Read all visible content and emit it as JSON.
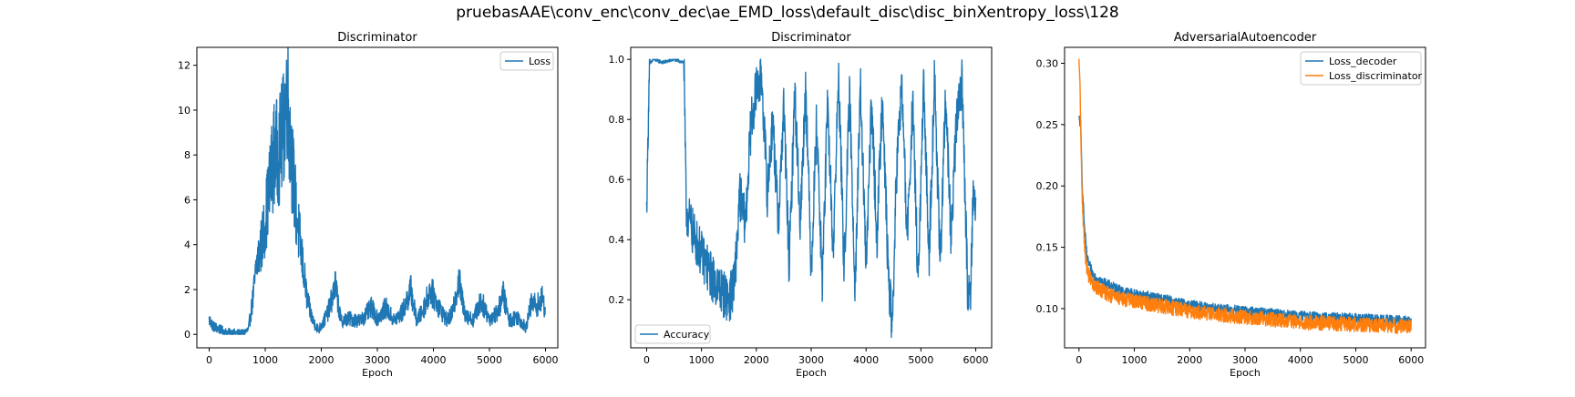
{
  "figure": {
    "suptitle": "pruebasAAE\\conv_enc\\conv_dec\\ae_EMD_loss\\default_disc\\disc_binXentropy_loss\\128"
  },
  "chart_data": [
    {
      "type": "line",
      "title": "Discriminator",
      "xlabel": "Epoch",
      "ylabel": "",
      "xlim": [
        -220,
        6220
      ],
      "ylim": [
        -0.6,
        12.8
      ],
      "xticks": [
        0,
        1000,
        2000,
        3000,
        4000,
        5000,
        6000
      ],
      "yticks": [
        0,
        2,
        4,
        6,
        8,
        10,
        12
      ],
      "legend": "top-right",
      "grid": false,
      "series": [
        {
          "name": "Loss",
          "color": "#1f77b4",
          "noise": 0.15,
          "keypoints": [
            [
              0,
              0.65
            ],
            [
              80,
              0.35
            ],
            [
              300,
              0.1
            ],
            [
              600,
              0.05
            ],
            [
              700,
              0.2
            ],
            [
              780,
              1.6
            ],
            [
              850,
              3.2
            ],
            [
              950,
              4.2
            ],
            [
              1050,
              6.0
            ],
            [
              1150,
              8.0
            ],
            [
              1250,
              8.2
            ],
            [
              1320,
              9.0
            ],
            [
              1390,
              11.0
            ],
            [
              1450,
              8.5
            ],
            [
              1550,
              5.5
            ],
            [
              1650,
              3.5
            ],
            [
              1750,
              1.5
            ],
            [
              1850,
              0.6
            ],
            [
              1950,
              0.2
            ],
            [
              2050,
              0.6
            ],
            [
              2150,
              1.2
            ],
            [
              2250,
              2.2
            ],
            [
              2350,
              0.6
            ],
            [
              2500,
              0.7
            ],
            [
              2700,
              0.6
            ],
            [
              2900,
              1.2
            ],
            [
              3000,
              0.7
            ],
            [
              3150,
              1.2
            ],
            [
              3300,
              0.6
            ],
            [
              3450,
              1.0
            ],
            [
              3600,
              2.0
            ],
            [
              3700,
              0.6
            ],
            [
              3800,
              1.0
            ],
            [
              3950,
              2.0
            ],
            [
              4100,
              1.2
            ],
            [
              4250,
              0.6
            ],
            [
              4350,
              1.0
            ],
            [
              4450,
              2.5
            ],
            [
              4550,
              1.0
            ],
            [
              4700,
              0.6
            ],
            [
              4850,
              1.5
            ],
            [
              5000,
              0.7
            ],
            [
              5150,
              1.0
            ],
            [
              5250,
              1.8
            ],
            [
              5350,
              0.6
            ],
            [
              5500,
              0.8
            ],
            [
              5650,
              0.3
            ],
            [
              5750,
              1.4
            ],
            [
              5850,
              1.3
            ],
            [
              5950,
              1.6
            ],
            [
              6000,
              1.0
            ]
          ]
        }
      ]
    },
    {
      "type": "line",
      "title": "Discriminator",
      "xlabel": "Epoch",
      "ylabel": "",
      "xlim": [
        -290,
        6290
      ],
      "ylim": [
        0.04,
        1.04
      ],
      "xticks": [
        0,
        1000,
        2000,
        3000,
        4000,
        5000,
        6000
      ],
      "yticks": [
        0.2,
        0.4,
        0.6,
        0.8,
        1.0
      ],
      "legend": "bottom-left",
      "grid": false,
      "series": [
        {
          "name": "Accuracy",
          "color": "#1f77b4",
          "noise": 0.05,
          "keypoints": [
            [
              0,
              0.5
            ],
            [
              50,
              0.98
            ],
            [
              120,
              1.0
            ],
            [
              300,
              0.99
            ],
            [
              500,
              1.0
            ],
            [
              680,
              0.99
            ],
            [
              720,
              0.5
            ],
            [
              850,
              0.42
            ],
            [
              1000,
              0.35
            ],
            [
              1200,
              0.27
            ],
            [
              1400,
              0.22
            ],
            [
              1500,
              0.2
            ],
            [
              1600,
              0.25
            ],
            [
              1700,
              0.55
            ],
            [
              1800,
              0.45
            ],
            [
              1900,
              0.78
            ],
            [
              2000,
              0.9
            ],
            [
              2100,
              0.94
            ],
            [
              2200,
              0.55
            ],
            [
              2300,
              0.8
            ],
            [
              2400,
              0.45
            ],
            [
              2500,
              0.85
            ],
            [
              2600,
              0.3
            ],
            [
              2700,
              0.9
            ],
            [
              2800,
              0.45
            ],
            [
              2900,
              0.92
            ],
            [
              3000,
              0.3
            ],
            [
              3100,
              0.8
            ],
            [
              3200,
              0.25
            ],
            [
              3300,
              0.85
            ],
            [
              3400,
              0.35
            ],
            [
              3500,
              0.95
            ],
            [
              3600,
              0.3
            ],
            [
              3700,
              0.88
            ],
            [
              3800,
              0.25
            ],
            [
              3900,
              0.9
            ],
            [
              4000,
              0.3
            ],
            [
              4100,
              0.85
            ],
            [
              4200,
              0.4
            ],
            [
              4300,
              0.9
            ],
            [
              4400,
              0.3
            ],
            [
              4480,
              0.1
            ],
            [
              4550,
              0.6
            ],
            [
              4650,
              0.92
            ],
            [
              4750,
              0.4
            ],
            [
              4850,
              0.85
            ],
            [
              4950,
              0.25
            ],
            [
              5050,
              0.9
            ],
            [
              5150,
              0.35
            ],
            [
              5250,
              0.95
            ],
            [
              5350,
              0.3
            ],
            [
              5450,
              0.88
            ],
            [
              5550,
              0.4
            ],
            [
              5650,
              0.8
            ],
            [
              5750,
              0.93
            ],
            [
              5850,
              0.25
            ],
            [
              5900,
              0.2
            ],
            [
              5950,
              0.55
            ],
            [
              6000,
              0.5
            ]
          ]
        }
      ]
    },
    {
      "type": "line",
      "title": "AdversarialAutoencoder",
      "xlabel": "Epoch",
      "ylabel": "",
      "xlim": [
        -260,
        6260
      ],
      "ylim": [
        0.068,
        0.313
      ],
      "xticks": [
        0,
        1000,
        2000,
        3000,
        4000,
        5000,
        6000
      ],
      "yticks": [
        0.1,
        0.15,
        0.2,
        0.25,
        0.3
      ],
      "legend": "top-right",
      "grid": false,
      "series": [
        {
          "name": "Loss_decoder",
          "color": "#1f77b4",
          "noise": 0.004,
          "keypoints": [
            [
              0,
              0.255
            ],
            [
              30,
              0.25
            ],
            [
              60,
              0.2
            ],
            [
              100,
              0.165
            ],
            [
              150,
              0.14
            ],
            [
              250,
              0.128
            ],
            [
              400,
              0.122
            ],
            [
              600,
              0.118
            ],
            [
              800,
              0.114
            ],
            [
              1000,
              0.112
            ],
            [
              1500,
              0.108
            ],
            [
              2000,
              0.103
            ],
            [
              2500,
              0.1
            ],
            [
              3000,
              0.098
            ],
            [
              3500,
              0.096
            ],
            [
              4000,
              0.094
            ],
            [
              4500,
              0.093
            ],
            [
              5000,
              0.092
            ],
            [
              5500,
              0.091
            ],
            [
              6000,
              0.09
            ]
          ]
        },
        {
          "name": "Loss_discriminator",
          "color": "#ff7f0e",
          "noise": 0.006,
          "keypoints": [
            [
              0,
              0.3
            ],
            [
              20,
              0.28
            ],
            [
              50,
              0.2
            ],
            [
              100,
              0.15
            ],
            [
              150,
              0.13
            ],
            [
              250,
              0.12
            ],
            [
              400,
              0.115
            ],
            [
              600,
              0.11
            ],
            [
              800,
              0.108
            ],
            [
              1000,
              0.106
            ],
            [
              1500,
              0.102
            ],
            [
              2000,
              0.098
            ],
            [
              2500,
              0.095
            ],
            [
              3000,
              0.093
            ],
            [
              3500,
              0.091
            ],
            [
              4000,
              0.089
            ],
            [
              4500,
              0.088
            ],
            [
              5000,
              0.087
            ],
            [
              5500,
              0.086
            ],
            [
              6000,
              0.085
            ]
          ]
        }
      ]
    }
  ]
}
